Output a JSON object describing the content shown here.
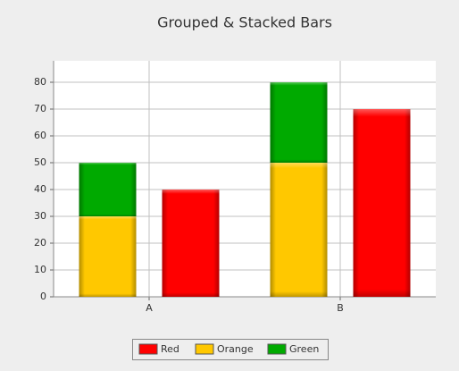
{
  "chart_data": {
    "type": "bar",
    "title": "Grouped & Stacked Bars",
    "categories": [
      "A",
      "B"
    ],
    "series": [
      {
        "name": "Red",
        "color": "#ff0000",
        "stack": 1,
        "values": [
          40,
          70
        ]
      },
      {
        "name": "Orange",
        "color": "#ffc800",
        "stack": 0,
        "values": [
          30,
          50
        ]
      },
      {
        "name": "Green",
        "color": "#00aa00",
        "stack": 0,
        "values": [
          20,
          30
        ]
      }
    ],
    "ylim": [
      0,
      88
    ],
    "yticks": [
      0,
      10,
      20,
      30,
      40,
      50,
      60,
      70,
      80
    ],
    "grid": true,
    "legend": "bottom"
  }
}
